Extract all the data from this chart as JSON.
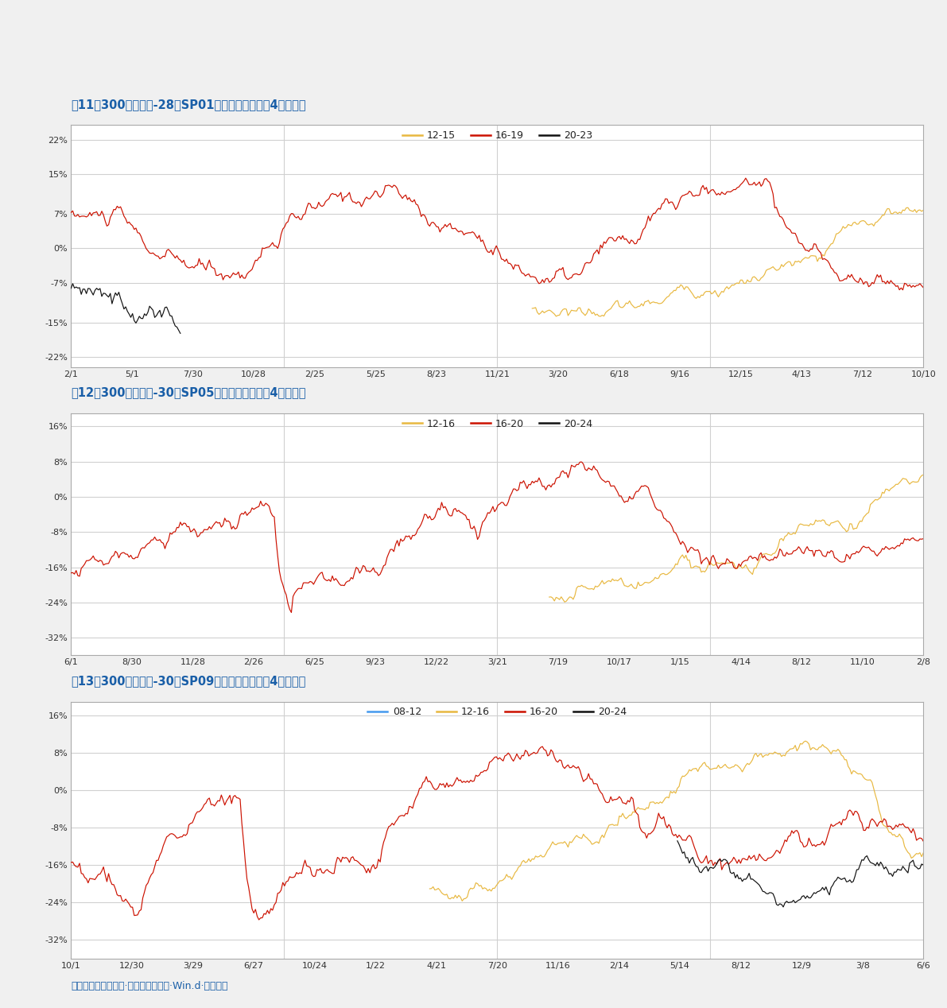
{
  "title1": "圖11：300噸本色漿-28手SP01（資金占用變動，4年周期）",
  "title2": "圖12：300噸本色漿-30手SP05（資金占用變動，4年周期）",
  "title3": "圖13：300噸本色漿-30手SP09（資金占用變動，4年周期）",
  "footer": "資料來源：中國漿紙·上海期貨交易所·Win.d·銀河期貨",
  "outer_bg": "#f0f0f0",
  "chart_bg": "#ffffff",
  "title_color": "#1a5fa8",
  "footer_color": "#1a5fa8",
  "grid_color": "#d0d0d0",
  "line_gold": "#e8b840",
  "line_red": "#cc1100",
  "line_black": "#111111",
  "line_blue": "#4499ee",
  "chart1": {
    "legend": [
      "12-15",
      "16-19",
      "20-23"
    ],
    "xticks": [
      "2/1",
      "5/1",
      "7/30",
      "10/28",
      "2/25",
      "5/25",
      "8/23",
      "11/21",
      "3/20",
      "6/18",
      "9/16",
      "12/15",
      "4/13",
      "7/12",
      "10/10"
    ],
    "yticks_val": [
      22,
      15,
      7,
      0,
      -7,
      -15,
      -22
    ],
    "yticks_lbl": [
      "22%",
      "15%",
      "7%",
      "0%",
      "-7%",
      "-15%",
      "-22%"
    ],
    "ymin": -24,
    "ymax": 25
  },
  "chart2": {
    "legend": [
      "12-16",
      "16-20",
      "20-24"
    ],
    "xticks": [
      "6/1",
      "8/30",
      "11/28",
      "2/26",
      "6/25",
      "9/23",
      "12/22",
      "3/21",
      "7/19",
      "10/17",
      "1/15",
      "4/14",
      "8/12",
      "11/10",
      "2/8"
    ],
    "yticks_val": [
      16,
      8,
      0,
      -8,
      -16,
      -24,
      -32
    ],
    "yticks_lbl": [
      "16%",
      "8%",
      "0%",
      "-8%",
      "-16%",
      "-24%",
      "-32%"
    ],
    "ymin": -36,
    "ymax": 19
  },
  "chart3": {
    "legend": [
      "08-12",
      "12-16",
      "16-20",
      "20-24"
    ],
    "xticks": [
      "10/1",
      "12/30",
      "3/29",
      "6/27",
      "10/24",
      "1/22",
      "4/21",
      "7/20",
      "11/16",
      "2/14",
      "5/14",
      "8/12",
      "12/9",
      "3/8",
      "6/6"
    ],
    "yticks_val": [
      16,
      8,
      0,
      -8,
      -16,
      -24,
      -32
    ],
    "yticks_lbl": [
      "16%",
      "8%",
      "0%",
      "-8%",
      "-16%",
      "-24%",
      "-32%"
    ],
    "ymin": -36,
    "ymax": 19
  }
}
